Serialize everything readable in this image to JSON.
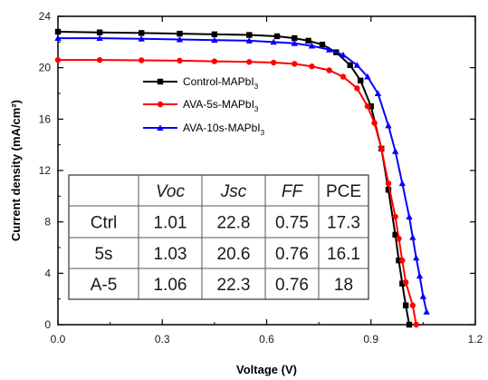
{
  "chart_data": {
    "type": "line",
    "xlabel": "Voltage (V)",
    "ylabel": "Current density (mA/cm²)",
    "xlim": [
      0.0,
      1.2
    ],
    "ylim": [
      0,
      24
    ],
    "xticks": [
      "0.0",
      "0.3",
      "0.6",
      "0.9",
      "1.2"
    ],
    "yticks": [
      "0",
      "4",
      "8",
      "12",
      "16",
      "20",
      "24"
    ],
    "grid": false,
    "legend_position": "upper-middle",
    "series": [
      {
        "name": "Control-MAPbI3",
        "legend": {
          "main": "Control-MAPbI",
          "sub": "3"
        },
        "color": "#000000",
        "marker": "square",
        "x": [
          0.0,
          0.12,
          0.24,
          0.35,
          0.45,
          0.55,
          0.63,
          0.68,
          0.72,
          0.76,
          0.8,
          0.84,
          0.87,
          0.9,
          0.93,
          0.95,
          0.97,
          0.98,
          0.99,
          1.0,
          1.01
        ],
        "y": [
          22.8,
          22.75,
          22.7,
          22.65,
          22.6,
          22.55,
          22.45,
          22.3,
          22.1,
          21.8,
          21.2,
          20.2,
          19.0,
          17.0,
          13.7,
          10.5,
          7.0,
          5.0,
          3.2,
          1.5,
          0.0
        ]
      },
      {
        "name": "AVA-5s-MAPbI3",
        "legend": {
          "main": "AVA-5s-MAPbI",
          "sub": "3"
        },
        "color": "#ff0000",
        "marker": "circle",
        "x": [
          0.0,
          0.12,
          0.24,
          0.35,
          0.45,
          0.55,
          0.62,
          0.68,
          0.73,
          0.78,
          0.82,
          0.86,
          0.89,
          0.91,
          0.93,
          0.95,
          0.97,
          0.98,
          0.99,
          1.0,
          1.02,
          1.03
        ],
        "y": [
          20.6,
          20.6,
          20.58,
          20.55,
          20.5,
          20.45,
          20.4,
          20.3,
          20.1,
          19.8,
          19.3,
          18.4,
          17.0,
          15.7,
          13.7,
          11.0,
          8.4,
          6.7,
          5.0,
          3.3,
          1.5,
          0.0
        ]
      },
      {
        "name": "AVA-10s-MAPbI3",
        "legend": {
          "main": "AVA-10s-MAPbI",
          "sub": "3"
        },
        "color": "#0000ff",
        "marker": "triangle",
        "x": [
          0.0,
          0.12,
          0.24,
          0.35,
          0.45,
          0.55,
          0.62,
          0.68,
          0.73,
          0.78,
          0.82,
          0.86,
          0.89,
          0.92,
          0.95,
          0.97,
          0.99,
          1.01,
          1.02,
          1.03,
          1.04,
          1.05,
          1.06
        ],
        "y": [
          22.3,
          22.3,
          22.25,
          22.2,
          22.15,
          22.1,
          22.0,
          21.9,
          21.7,
          21.4,
          21.0,
          20.2,
          19.3,
          18.0,
          15.5,
          13.5,
          11.0,
          8.4,
          6.8,
          5.2,
          3.8,
          2.2,
          1.0
        ]
      }
    ],
    "table": {
      "headers": [
        "",
        "Voc",
        "Jsc",
        "FF",
        "PCE"
      ],
      "rows": [
        [
          "Ctrl",
          "1.01",
          "22.8",
          "0.75",
          "17.3"
        ],
        [
          "5s",
          "1.03",
          "20.6",
          "0.76",
          "16.1"
        ],
        [
          "A-5",
          "1.06",
          "22.3",
          "0.76",
          "18"
        ]
      ]
    }
  }
}
